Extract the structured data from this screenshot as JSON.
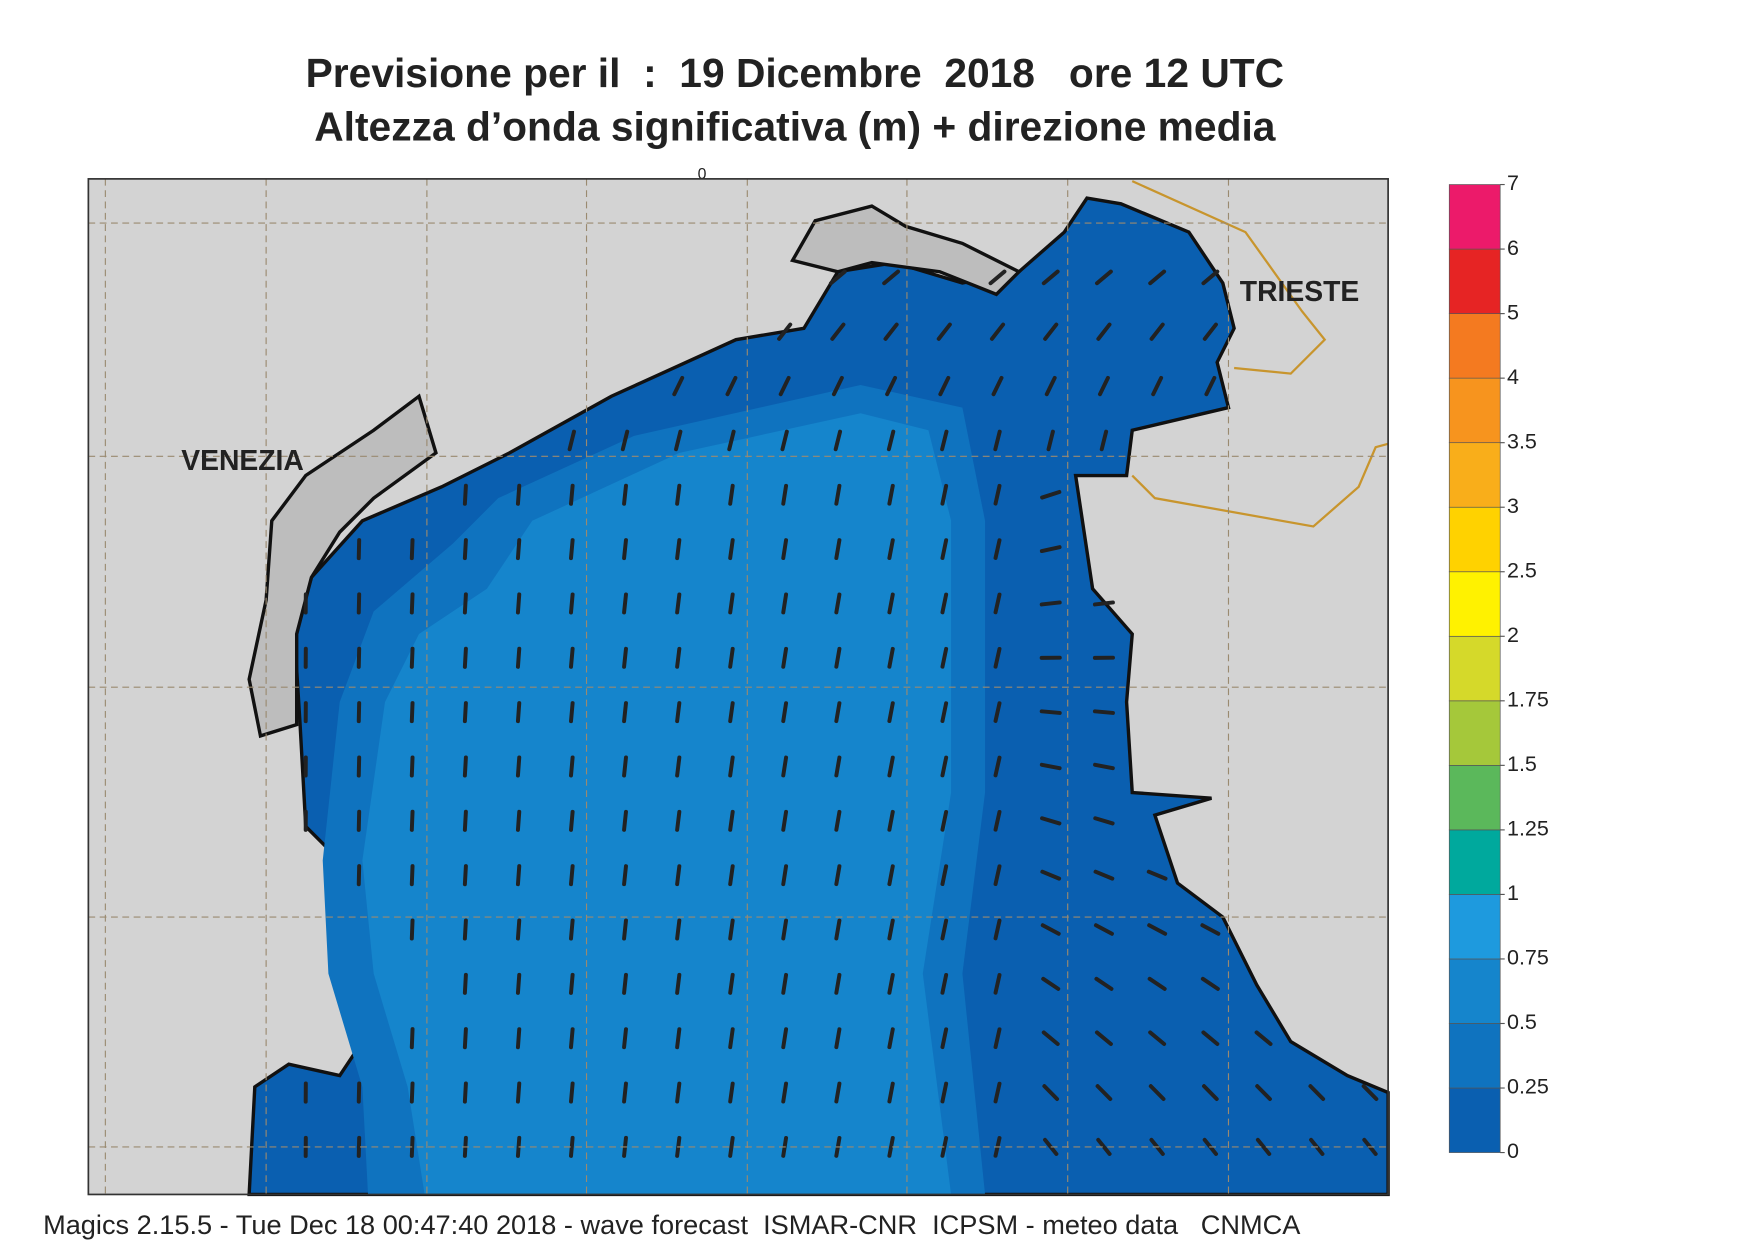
{
  "header": {
    "title_line1": "Previsione per il  :  19 Dicembre  2018   ore 12 UTC",
    "title_line2": "Altezza d’onda significativa (m) + direzione media"
  },
  "map": {
    "top_label": "0",
    "city_1": "VENEZIA",
    "city_2": "TRIESTE"
  },
  "legend": {
    "levels": [
      0,
      0.25,
      0.5,
      0.75,
      1,
      1.25,
      1.5,
      1.75,
      2,
      2.5,
      3,
      3.5,
      4,
      5,
      6,
      7
    ],
    "colors": [
      "#0a5fb0",
      "#0f73bf",
      "#1585cc",
      "#1e9ade",
      "#00a99d",
      "#5bb85b",
      "#a5c83a",
      "#d5d92a",
      "#fff200",
      "#ffd200",
      "#f9ae1a",
      "#f7941e",
      "#f47a20",
      "#e62424",
      "#ec1a6a"
    ]
  },
  "footer": "Magics 2.15.5 - Tue Dec 18 00:47:40 2018 - wave forecast  ISMAR-CNR  ICPSM - meteo data   CNMCA"
}
